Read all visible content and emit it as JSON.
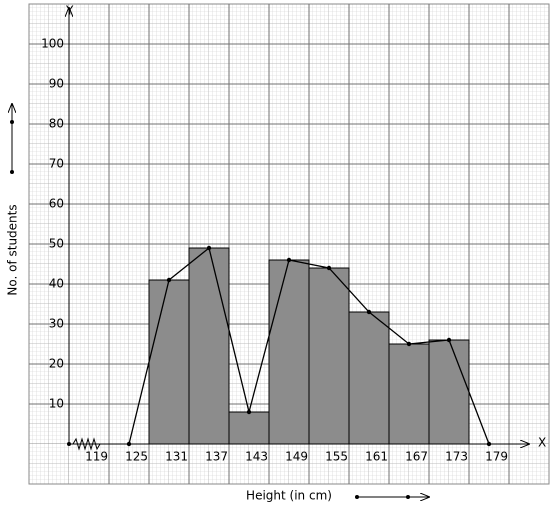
{
  "chart_data": {
    "type": "histogram",
    "x_label": "Height (in cm)",
    "y_label": "No. of students",
    "x_axis_name": "X",
    "y_axis_name": "Y",
    "bins": [
      125,
      131,
      137,
      143,
      149,
      155,
      161,
      167,
      173
    ],
    "values": [
      41,
      49,
      8,
      46,
      44,
      33,
      25,
      26
    ],
    "color": "#8c8c8c",
    "polygon": {
      "x": [
        122,
        128,
        134,
        140,
        146,
        152,
        158,
        164,
        170,
        176
      ],
      "values": [
        0,
        41,
        49,
        8,
        46,
        44,
        33,
        25,
        26,
        0
      ],
      "color": "#000000"
    },
    "xlim": [
      113,
      182
    ],
    "ylim": [
      0,
      110
    ],
    "xticks": [
      119,
      125,
      131,
      137,
      143,
      149,
      155,
      161,
      167,
      173,
      179
    ],
    "yticks": [
      10,
      20,
      30,
      40,
      50,
      60,
      70,
      80,
      90,
      100
    ],
    "grid": true
  }
}
